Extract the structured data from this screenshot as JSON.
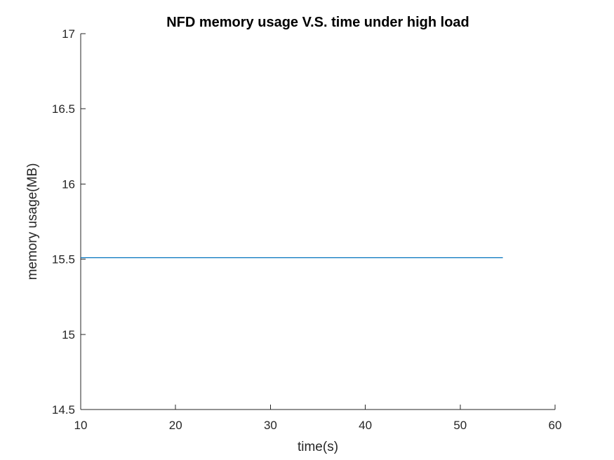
{
  "chart_data": {
    "type": "line",
    "title": "NFD memory usage V.S. time under high load",
    "xlabel": "time(s)",
    "ylabel": "memory usage(MB)",
    "xlim": [
      10,
      60
    ],
    "ylim": [
      14.5,
      17
    ],
    "xticks": [
      "10",
      "20",
      "30",
      "40",
      "50",
      "60"
    ],
    "yticks": [
      "14.5",
      "15",
      "15.5",
      "16",
      "16.5",
      "17"
    ],
    "grid": false,
    "series": [
      {
        "color": "#0072BD",
        "x": [
          10,
          54.5
        ],
        "y": [
          15.51,
          15.51
        ]
      }
    ]
  }
}
